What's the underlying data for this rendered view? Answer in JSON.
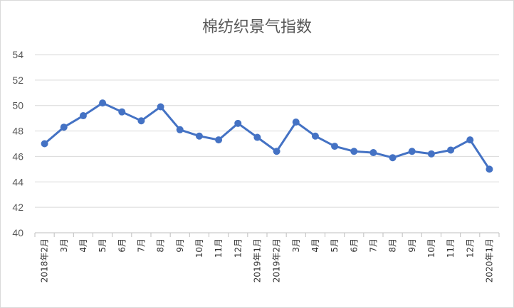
{
  "colors": {
    "series": "#4472C4"
  },
  "chart_data": {
    "type": "line",
    "title": "棉纺织景气指数",
    "xlabel": "",
    "ylabel": "",
    "ylim": [
      40,
      54
    ],
    "yticks": [
      40,
      42,
      44,
      46,
      48,
      50,
      52,
      54
    ],
    "grid": true,
    "legend": "none",
    "categories": [
      "2018年2月",
      "3月",
      "4月",
      "5月",
      "6月",
      "7月",
      "8月",
      "9月",
      "10月",
      "11月",
      "12月",
      "2019年1月",
      "2019年2月",
      "3月",
      "4月",
      "5月",
      "6月",
      "7月",
      "8月",
      "9月",
      "10月",
      "11月",
      "12月",
      "2020年1月"
    ],
    "series": [
      {
        "values": [
          47.0,
          48.3,
          49.2,
          50.2,
          49.5,
          48.8,
          49.9,
          48.1,
          47.6,
          47.3,
          48.6,
          47.5,
          46.4,
          48.7,
          47.6,
          46.8,
          46.4,
          46.3,
          45.9,
          46.4,
          46.2,
          46.5,
          47.3,
          45.0
        ]
      }
    ]
  }
}
